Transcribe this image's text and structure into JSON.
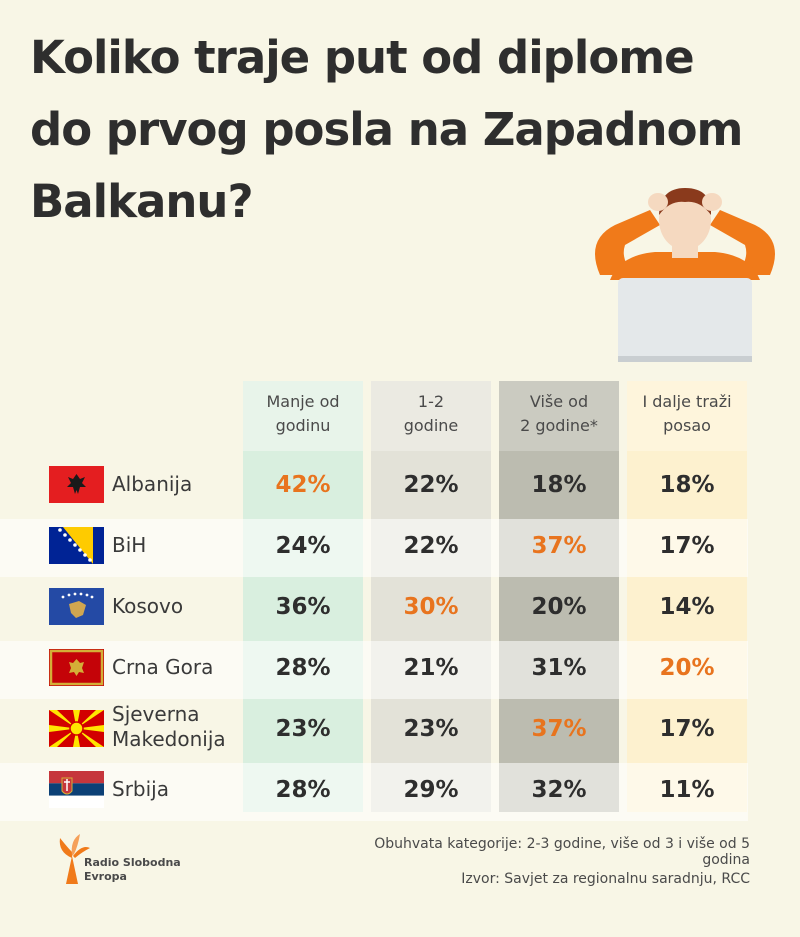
{
  "title_lines": [
    "Koliko traje put od diplome",
    "do prvog posla na Zapadnom",
    "Balkanu?"
  ],
  "chart_data": {
    "type": "table",
    "columns": [
      {
        "label": [
          "Manje od",
          "godinu"
        ]
      },
      {
        "label": [
          "1-2",
          "godine"
        ]
      },
      {
        "label": [
          "Više od",
          "2 godine*"
        ]
      },
      {
        "label": [
          "I dalje traži",
          "posao"
        ]
      }
    ],
    "rows": [
      {
        "country": [
          "Albanija"
        ],
        "flag": "albania-flag",
        "values": [
          "42%",
          "22%",
          "18%",
          "18%"
        ],
        "highlight": 0
      },
      {
        "country": [
          "BiH"
        ],
        "flag": "bih-flag",
        "values": [
          "24%",
          "22%",
          "37%",
          "17%"
        ],
        "highlight": 2
      },
      {
        "country": [
          "Kosovo"
        ],
        "flag": "kosovo-flag",
        "values": [
          "36%",
          "30%",
          "20%",
          "14%"
        ],
        "highlight": 1
      },
      {
        "country": [
          "Crna Gora"
        ],
        "flag": "montenegro-flag",
        "values": [
          "28%",
          "21%",
          "31%",
          "20%"
        ],
        "highlight": 3
      },
      {
        "country": [
          "Sjeverna",
          "Makedonija"
        ],
        "flag": "north-macedonia-flag",
        "values": [
          "23%",
          "23%",
          "37%",
          "17%"
        ],
        "highlight": 2
      },
      {
        "country": [
          "Srbija"
        ],
        "flag": "serbia-flag",
        "values": [
          "28%",
          "29%",
          "32%",
          "11%"
        ],
        "highlight": -1
      }
    ]
  },
  "note": "Obuhvata kategorije: 2-3 godine, više od 3 i više od 5 godina",
  "source": "Izvor: Savjet za regionalnu saradnju, RCC",
  "logo_text": [
    "Radio Slobodna",
    "Evropa"
  ],
  "colors": {
    "highlight": "#e8741e",
    "background": "#f8f6e6",
    "col_less_than_year": "#d9efdf",
    "col_1_2_years": "#e3e2d8",
    "col_more_than_2": "#bcbcb0",
    "col_still_searching": "#fdf1cf"
  }
}
